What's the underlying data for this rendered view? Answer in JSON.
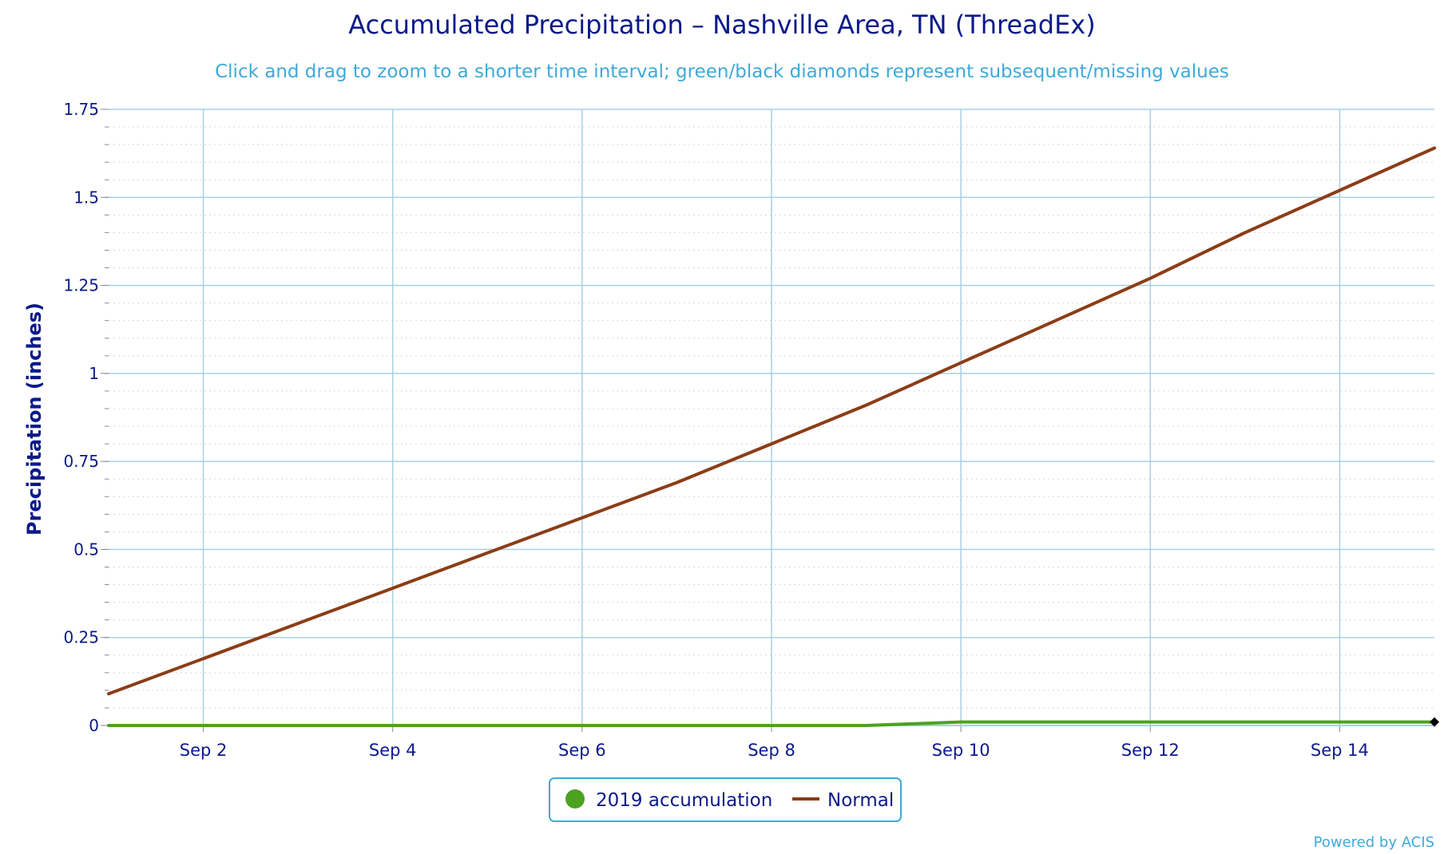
{
  "chart_data": {
    "type": "line",
    "title": "Accumulated Precipitation – Nashville Area, TN (ThreadEx)",
    "subtitle": "Click and drag to zoom to a shorter time interval; green/black diamonds represent subsequent/missing values",
    "ylabel": "Precipitation (inches)",
    "xlabel": "",
    "x_ticks": [
      "Sep 2",
      "Sep 4",
      "Sep 6",
      "Sep 8",
      "Sep 10",
      "Sep 12",
      "Sep 14"
    ],
    "y_ticks": [
      "0",
      "0.25",
      "0.5",
      "0.75",
      "1",
      "1.25",
      "1.5",
      "1.75"
    ],
    "ylim": [
      0,
      1.75
    ],
    "x_dates": [
      "Sep 1",
      "Sep 2",
      "Sep 3",
      "Sep 4",
      "Sep 5",
      "Sep 6",
      "Sep 7",
      "Sep 8",
      "Sep 9",
      "Sep 10",
      "Sep 11",
      "Sep 12",
      "Sep 13",
      "Sep 14",
      "Sep 15"
    ],
    "series": [
      {
        "name": "2019 accumulation",
        "color": "#4ca21f",
        "values": [
          0,
          0,
          0,
          0,
          0,
          0,
          0,
          0,
          0,
          0.01,
          0.01,
          0.01,
          0.01,
          0.01,
          0.01
        ],
        "legend_symbol": "circle"
      },
      {
        "name": "Normal",
        "color": "#8b3d17",
        "values": [
          0.09,
          0.19,
          0.29,
          0.39,
          0.49,
          0.59,
          0.69,
          0.8,
          0.91,
          1.03,
          1.15,
          1.27,
          1.4,
          1.52,
          1.64
        ],
        "legend_symbol": "line"
      }
    ],
    "missing_marker": {
      "x": "Sep 15",
      "y": 0.01,
      "color": "#000000",
      "shape": "diamond"
    },
    "grid": true,
    "legend_position": "bottom-center"
  },
  "credit": "Powered by ACIS"
}
